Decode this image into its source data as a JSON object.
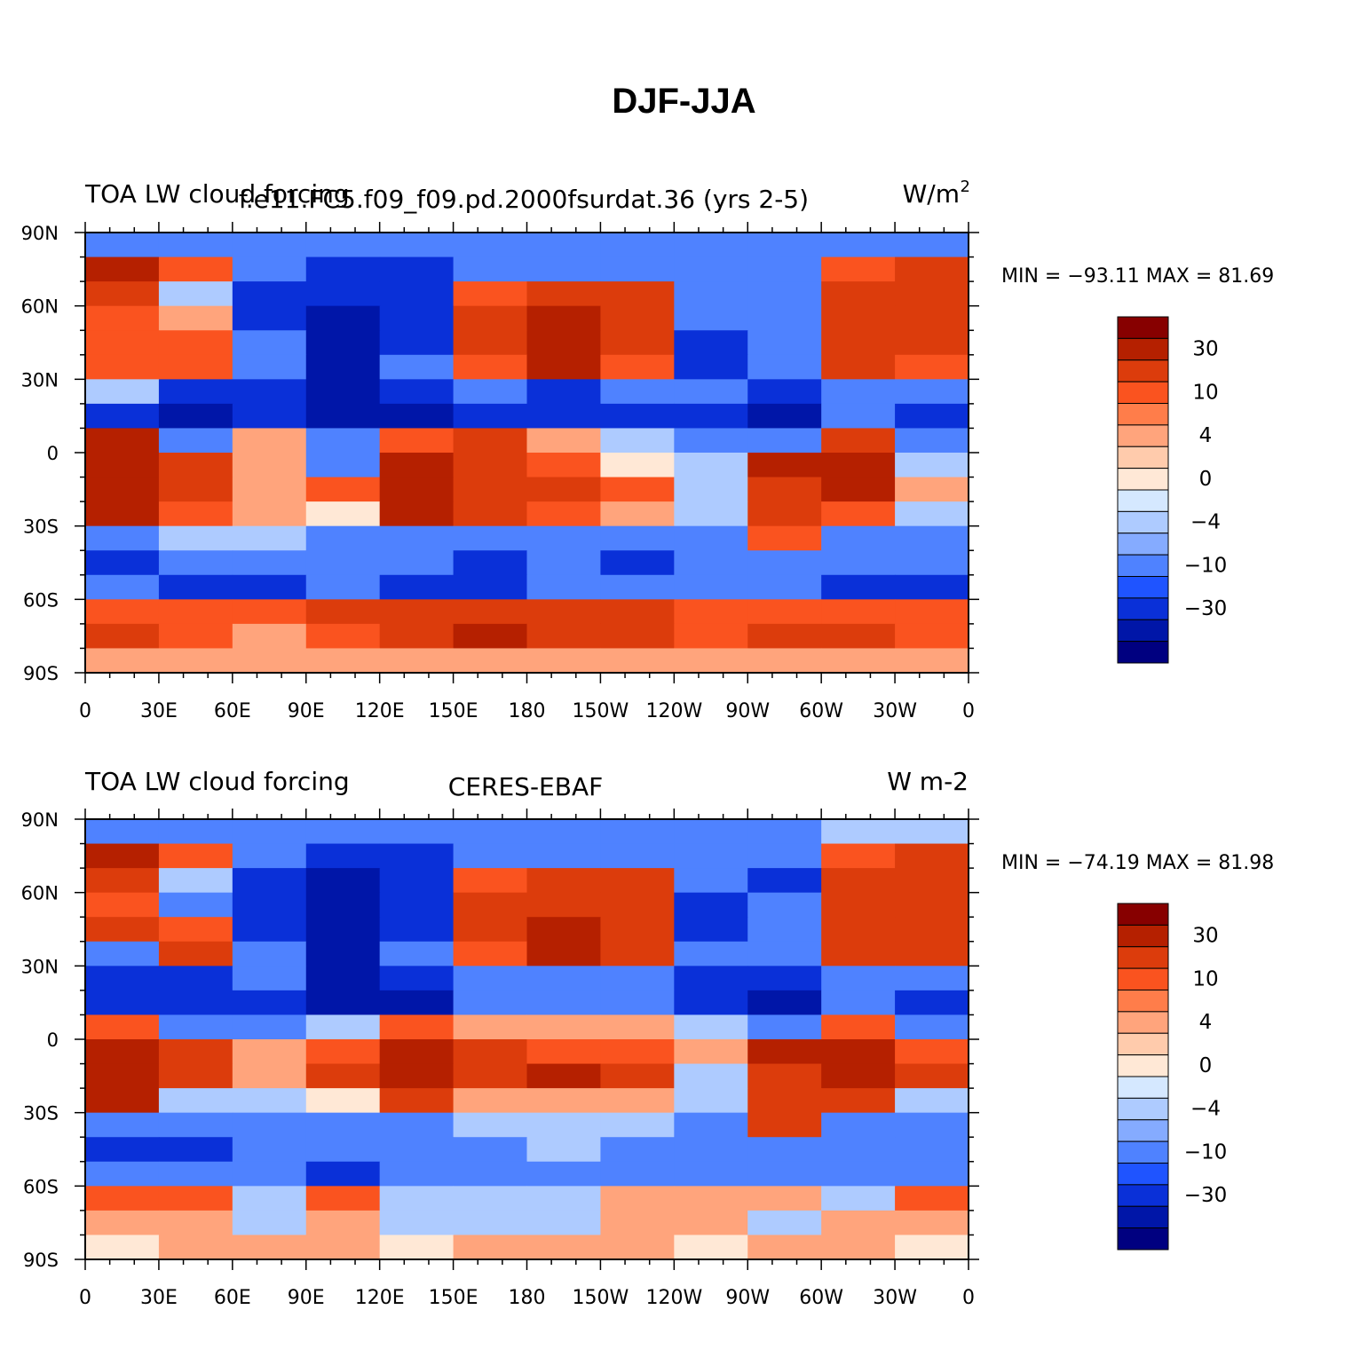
{
  "figure": {
    "title": "DJF-JJA"
  },
  "chart_data": [
    {
      "type": "heatmap",
      "title_left": "TOA LW cloud forcing",
      "title_center": "f.e11.FC5.f09_f09.pd.2000fsurdat.36 (yrs 2-5)",
      "title_right": "W/m",
      "title_right_sup": "2",
      "xticks": [
        "0",
        "30E",
        "60E",
        "90E",
        "120E",
        "150E",
        "180",
        "150W",
        "120W",
        "90W",
        "60W",
        "30W",
        "0"
      ],
      "yticks": [
        "90N",
        "60N",
        "30N",
        "0",
        "30S",
        "60S",
        "90S"
      ],
      "xlim": [
        0,
        360
      ],
      "ylim": [
        -90,
        90
      ],
      "stats": "MIN = −93.11  MAX =   81.69",
      "min": -93.11,
      "max": 81.69,
      "colorbar": {
        "labels": [
          "30",
          "10",
          "4",
          "0",
          "−4",
          "−10",
          "−30"
        ],
        "colors": [
          "#870000",
          "#b52000",
          "#dc3c0c",
          "#fa531f",
          "#ff7d4a",
          "#ffa47c",
          "#ffcbac",
          "#ffe8d6",
          "#d5e8ff",
          "#aecbff",
          "#85abff",
          "#4f82ff",
          "#1f54ff",
          "#0a30d8",
          "#0016a8",
          "#000080"
        ]
      },
      "field": {
        "rows_lat": [
          85,
          75,
          65,
          55,
          45,
          35,
          25,
          15,
          5,
          -5,
          -15,
          -25,
          -35,
          -45,
          -55,
          -65,
          -75,
          -85
        ],
        "cols_lon": [
          15,
          45,
          75,
          105,
          135,
          165,
          195,
          225,
          255,
          285,
          315,
          345
        ],
        "values": [
          [
            -10,
            -10,
            -10,
            -10,
            -10,
            -10,
            -10,
            -10,
            -10,
            -10,
            -10,
            -8
          ],
          [
            30,
            10,
            -10,
            -30,
            -30,
            -10,
            -10,
            -10,
            -10,
            -10,
            10,
            20
          ],
          [
            20,
            -4,
            -30,
            -30,
            -30,
            10,
            20,
            20,
            -10,
            -10,
            20,
            20
          ],
          [
            10,
            4,
            -30,
            -50,
            -30,
            20,
            30,
            20,
            -10,
            -10,
            25,
            20
          ],
          [
            10,
            10,
            -10,
            -50,
            -30,
            20,
            30,
            20,
            -30,
            -10,
            20,
            20
          ],
          [
            10,
            10,
            -10,
            -40,
            -10,
            10,
            30,
            10,
            -30,
            -10,
            20,
            10
          ],
          [
            -4,
            -30,
            -30,
            -50,
            -30,
            -10,
            -30,
            -10,
            -10,
            -30,
            -10,
            -10
          ],
          [
            -30,
            -40,
            -30,
            -50,
            -50,
            -30,
            -30,
            -30,
            -30,
            -50,
            -10,
            -30
          ],
          [
            30,
            -10,
            4,
            -10,
            10,
            20,
            4,
            -4,
            -10,
            -10,
            20,
            -10
          ],
          [
            40,
            20,
            4,
            -10,
            30,
            20,
            10,
            0,
            -4,
            30,
            40,
            -4
          ],
          [
            40,
            20,
            4,
            10,
            40,
            20,
            20,
            10,
            -4,
            20,
            40,
            4
          ],
          [
            30,
            10,
            4,
            0,
            30,
            20,
            10,
            4,
            -4,
            20,
            10,
            -4
          ],
          [
            -10,
            -4,
            -4,
            -10,
            -10,
            -10,
            -10,
            -10,
            -10,
            10,
            -10,
            -10
          ],
          [
            -30,
            -10,
            -10,
            -10,
            -10,
            -30,
            -10,
            -30,
            -10,
            -10,
            -10,
            -10
          ],
          [
            -10,
            -30,
            -30,
            -10,
            -30,
            -30,
            -10,
            -10,
            -10,
            -10,
            -30,
            -30
          ],
          [
            10,
            10,
            10,
            20,
            20,
            20,
            20,
            20,
            10,
            10,
            10,
            10
          ],
          [
            20,
            10,
            4,
            10,
            20,
            30,
            20,
            20,
            10,
            20,
            20,
            10
          ],
          [
            4,
            4,
            4,
            4,
            4,
            4,
            4,
            4,
            4,
            4,
            4,
            4
          ]
        ]
      }
    },
    {
      "type": "heatmap",
      "title_left": "TOA LW cloud forcing",
      "title_center": "CERES-EBAF",
      "title_right": "W m-2",
      "xticks": [
        "0",
        "30E",
        "60E",
        "90E",
        "120E",
        "150E",
        "180",
        "150W",
        "120W",
        "90W",
        "60W",
        "30W",
        "0"
      ],
      "yticks": [
        "90N",
        "60N",
        "30N",
        "0",
        "30S",
        "60S",
        "90S"
      ],
      "xlim": [
        0,
        360
      ],
      "ylim": [
        -90,
        90
      ],
      "stats": "MIN = −74.19  MAX =   81.98",
      "min": -74.19,
      "max": 81.98,
      "colorbar": {
        "labels": [
          "30",
          "10",
          "4",
          "0",
          "−4",
          "−10",
          "−30"
        ],
        "colors": [
          "#870000",
          "#b52000",
          "#dc3c0c",
          "#fa531f",
          "#ff7d4a",
          "#ffa47c",
          "#ffcbac",
          "#ffe8d6",
          "#d5e8ff",
          "#aecbff",
          "#85abff",
          "#4f82ff",
          "#1f54ff",
          "#0a30d8",
          "#0016a8",
          "#000080"
        ]
      },
      "field": {
        "rows_lat": [
          85,
          75,
          65,
          55,
          45,
          35,
          25,
          15,
          5,
          -5,
          -15,
          -25,
          -35,
          -45,
          -55,
          -65,
          -75,
          -85
        ],
        "cols_lon": [
          15,
          45,
          75,
          105,
          135,
          165,
          195,
          225,
          255,
          285,
          315,
          345
        ],
        "values": [
          [
            -10,
            -10,
            -10,
            -10,
            -10,
            -10,
            -10,
            -10,
            -10,
            -10,
            -4,
            -4
          ],
          [
            30,
            10,
            -10,
            -30,
            -30,
            -10,
            -10,
            -10,
            -10,
            -10,
            10,
            20
          ],
          [
            20,
            -4,
            -30,
            -40,
            -30,
            10,
            20,
            20,
            -10,
            -30,
            20,
            20
          ],
          [
            10,
            -10,
            -30,
            -40,
            -30,
            20,
            20,
            20,
            -30,
            -10,
            20,
            20
          ],
          [
            20,
            10,
            -30,
            -50,
            -30,
            20,
            30,
            20,
            -30,
            -10,
            20,
            20
          ],
          [
            -10,
            20,
            -10,
            -50,
            -10,
            10,
            30,
            20,
            -10,
            -10,
            20,
            20
          ],
          [
            -30,
            -30,
            -10,
            -50,
            -30,
            -10,
            -10,
            -10,
            -30,
            -30,
            -10,
            -10
          ],
          [
            -30,
            -30,
            -30,
            -50,
            -40,
            -10,
            -10,
            -10,
            -30,
            -50,
            -10,
            -30
          ],
          [
            10,
            -10,
            -10,
            -4,
            10,
            4,
            4,
            4,
            -4,
            -10,
            10,
            -10
          ],
          [
            40,
            20,
            4,
            10,
            30,
            20,
            10,
            10,
            4,
            30,
            40,
            10
          ],
          [
            40,
            20,
            4,
            20,
            40,
            20,
            30,
            20,
            -4,
            20,
            40,
            20
          ],
          [
            40,
            -4,
            -4,
            0,
            20,
            4,
            4,
            4,
            -4,
            20,
            20,
            -4
          ],
          [
            -10,
            -10,
            -10,
            -10,
            -10,
            -4,
            -4,
            -4,
            -10,
            20,
            -10,
            -10
          ],
          [
            -30,
            -30,
            -10,
            -10,
            -10,
            -10,
            -4,
            -10,
            -10,
            -10,
            -10,
            -10
          ],
          [
            -10,
            -10,
            -10,
            -30,
            -10,
            -10,
            -10,
            -10,
            -10,
            -10,
            -10,
            -10
          ],
          [
            10,
            10,
            -4,
            10,
            -4,
            -4,
            -4,
            4,
            4,
            4,
            -4,
            10
          ],
          [
            4,
            4,
            -4,
            4,
            -4,
            -4,
            -4,
            4,
            4,
            -4,
            4,
            4
          ],
          [
            0,
            4,
            4,
            4,
            0,
            4,
            4,
            4,
            0,
            4,
            4,
            0
          ]
        ]
      }
    }
  ]
}
